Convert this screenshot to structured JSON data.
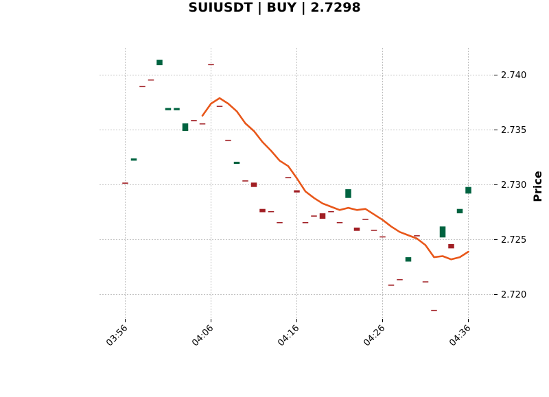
{
  "chart_data": {
    "type": "candlestick",
    "title": "SUIUSDT | BUY | 2.7298",
    "ylabel": "Price",
    "xlabel": "",
    "time_start": "03:53",
    "time_end": "04:37",
    "x_ticks": [
      "03:56",
      "04:06",
      "04:16",
      "04:26",
      "04:36"
    ],
    "ylim": [
      2.7172,
      2.7425
    ],
    "y_ticks": [
      2.72,
      2.725,
      2.73,
      2.735,
      2.74
    ],
    "grid": true,
    "colors": {
      "up": "#006340",
      "down": "#a11f24",
      "ma": "#e8571a"
    },
    "candles": [
      {
        "t": "03:56",
        "o": 2.7302,
        "c": 2.7301,
        "dir": "down"
      },
      {
        "t": "03:57",
        "o": 2.7322,
        "c": 2.7324,
        "dir": "up"
      },
      {
        "t": "03:58",
        "o": 2.739,
        "c": 2.7389,
        "dir": "down"
      },
      {
        "t": "03:59",
        "o": 2.7396,
        "c": 2.7395,
        "dir": "down"
      },
      {
        "t": "04:00",
        "o": 2.7409,
        "c": 2.7414,
        "dir": "up"
      },
      {
        "t": "04:01",
        "o": 2.7368,
        "c": 2.737,
        "dir": "up"
      },
      {
        "t": "04:02",
        "o": 2.7368,
        "c": 2.737,
        "dir": "up"
      },
      {
        "t": "04:03",
        "o": 2.7349,
        "c": 2.7356,
        "dir": "up"
      },
      {
        "t": "04:04",
        "o": 2.7359,
        "c": 2.7358,
        "dir": "down"
      },
      {
        "t": "04:05",
        "o": 2.7356,
        "c": 2.7355,
        "dir": "down"
      },
      {
        "t": "04:06",
        "o": 2.741,
        "c": 2.7409,
        "dir": "down"
      },
      {
        "t": "04:07",
        "o": 2.7372,
        "c": 2.7371,
        "dir": "down"
      },
      {
        "t": "04:08",
        "o": 2.7341,
        "c": 2.734,
        "dir": "down"
      },
      {
        "t": "04:09",
        "o": 2.7319,
        "c": 2.7321,
        "dir": "up"
      },
      {
        "t": "04:10",
        "o": 2.7304,
        "c": 2.7303,
        "dir": "down"
      },
      {
        "t": "04:11",
        "o": 2.7302,
        "c": 2.7298,
        "dir": "down"
      },
      {
        "t": "04:12",
        "o": 2.7278,
        "c": 2.7275,
        "dir": "down"
      },
      {
        "t": "04:13",
        "o": 2.7276,
        "c": 2.7275,
        "dir": "down"
      },
      {
        "t": "04:14",
        "o": 2.7266,
        "c": 2.7265,
        "dir": "down"
      },
      {
        "t": "04:15",
        "o": 2.7307,
        "c": 2.7306,
        "dir": "down"
      },
      {
        "t": "04:16",
        "o": 2.7295,
        "c": 2.7293,
        "dir": "down"
      },
      {
        "t": "04:17",
        "o": 2.7266,
        "c": 2.7265,
        "dir": "down"
      },
      {
        "t": "04:18",
        "o": 2.7272,
        "c": 2.7271,
        "dir": "down"
      },
      {
        "t": "04:19",
        "o": 2.7274,
        "c": 2.7269,
        "dir": "down"
      },
      {
        "t": "04:20",
        "o": 2.7276,
        "c": 2.7275,
        "dir": "down"
      },
      {
        "t": "04:21",
        "o": 2.7266,
        "c": 2.7265,
        "dir": "down"
      },
      {
        "t": "04:22",
        "o": 2.7288,
        "c": 2.7296,
        "dir": "up"
      },
      {
        "t": "04:23",
        "o": 2.7261,
        "c": 2.7258,
        "dir": "down"
      },
      {
        "t": "04:24",
        "o": 2.7269,
        "c": 2.7268,
        "dir": "down"
      },
      {
        "t": "04:25",
        "o": 2.7259,
        "c": 2.7258,
        "dir": "down"
      },
      {
        "t": "04:26",
        "o": 2.7253,
        "c": 2.7252,
        "dir": "down"
      },
      {
        "t": "04:27",
        "o": 2.7209,
        "c": 2.7208,
        "dir": "down"
      },
      {
        "t": "04:28",
        "o": 2.7214,
        "c": 2.7213,
        "dir": "down"
      },
      {
        "t": "04:29",
        "o": 2.723,
        "c": 2.7234,
        "dir": "up"
      },
      {
        "t": "04:30",
        "o": 2.7254,
        "c": 2.7253,
        "dir": "down"
      },
      {
        "t": "04:31",
        "o": 2.7212,
        "c": 2.7211,
        "dir": "down"
      },
      {
        "t": "04:32",
        "o": 2.7186,
        "c": 2.7185,
        "dir": "down"
      },
      {
        "t": "04:33",
        "o": 2.7252,
        "c": 2.7262,
        "dir": "up"
      },
      {
        "t": "04:34",
        "o": 2.7246,
        "c": 2.7242,
        "dir": "down"
      },
      {
        "t": "04:35",
        "o": 2.7274,
        "c": 2.7278,
        "dir": "up"
      },
      {
        "t": "04:36",
        "o": 2.7292,
        "c": 2.7298,
        "dir": "up"
      }
    ],
    "moving_average": [
      {
        "t": "04:05",
        "v": 2.7363
      },
      {
        "t": "04:06",
        "v": 2.7374
      },
      {
        "t": "04:07",
        "v": 2.7379
      },
      {
        "t": "04:08",
        "v": 2.7374
      },
      {
        "t": "04:09",
        "v": 2.7367
      },
      {
        "t": "04:10",
        "v": 2.7356
      },
      {
        "t": "04:11",
        "v": 2.7349
      },
      {
        "t": "04:12",
        "v": 2.7339
      },
      {
        "t": "04:13",
        "v": 2.7331
      },
      {
        "t": "04:14",
        "v": 2.7322
      },
      {
        "t": "04:15",
        "v": 2.7317
      },
      {
        "t": "04:16",
        "v": 2.7306
      },
      {
        "t": "04:17",
        "v": 2.7294
      },
      {
        "t": "04:18",
        "v": 2.7288
      },
      {
        "t": "04:19",
        "v": 2.7283
      },
      {
        "t": "04:20",
        "v": 2.728
      },
      {
        "t": "04:21",
        "v": 2.7277
      },
      {
        "t": "04:22",
        "v": 2.7279
      },
      {
        "t": "04:23",
        "v": 2.7277
      },
      {
        "t": "04:24",
        "v": 2.7278
      },
      {
        "t": "04:25",
        "v": 2.7273
      },
      {
        "t": "04:26",
        "v": 2.7268
      },
      {
        "t": "04:27",
        "v": 2.7262
      },
      {
        "t": "04:28",
        "v": 2.7257
      },
      {
        "t": "04:29",
        "v": 2.7254
      },
      {
        "t": "04:30",
        "v": 2.7251
      },
      {
        "t": "04:31",
        "v": 2.7245
      },
      {
        "t": "04:32",
        "v": 2.7234
      },
      {
        "t": "04:33",
        "v": 2.7235
      },
      {
        "t": "04:34",
        "v": 2.7232
      },
      {
        "t": "04:35",
        "v": 2.7234
      },
      {
        "t": "04:36",
        "v": 2.7239
      }
    ]
  }
}
